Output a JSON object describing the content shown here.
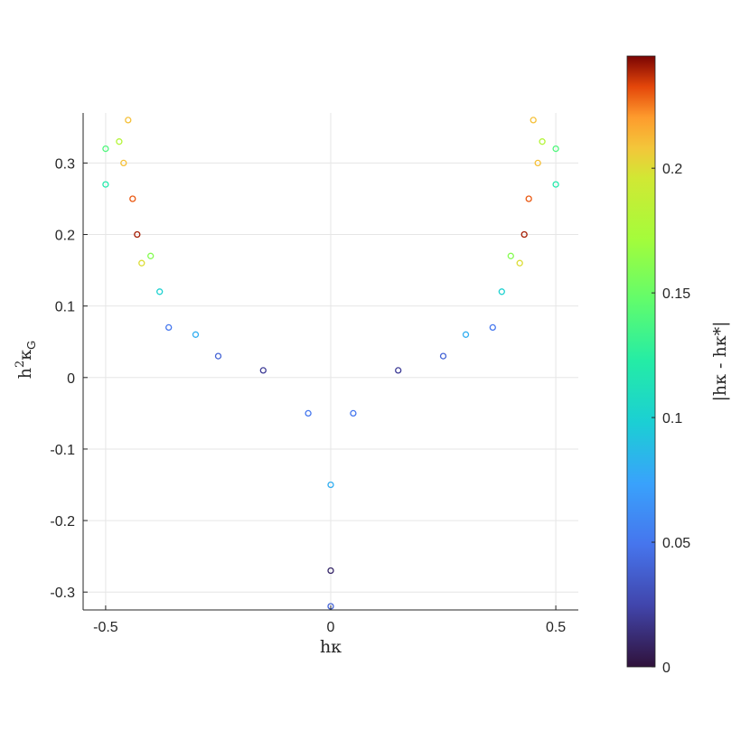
{
  "chart_data": {
    "type": "scatter",
    "title": "",
    "xlabel": "hκ",
    "ylabel_base": "h",
    "ylabel_sup": "2",
    "ylabel_kappa": "κ",
    "ylabel_sub": "G",
    "colorbar_label": "|hκ - hκ*|",
    "xlim": [
      -0.55,
      0.55
    ],
    "ylim": [
      -0.325,
      0.37
    ],
    "xticks": [
      -0.5,
      0,
      0.5
    ],
    "xtick_labels": [
      "-0.5",
      "0",
      "0.5"
    ],
    "yticks": [
      -0.3,
      -0.2,
      -0.1,
      0,
      0.1,
      0.2,
      0.3
    ],
    "ytick_labels": [
      "-0.3",
      "-0.2",
      "-0.1",
      "0",
      "0.1",
      "0.2",
      "0.3"
    ],
    "clim": [
      0,
      0.245
    ],
    "cticks": [
      0,
      0.05,
      0.1,
      0.15,
      0.2
    ],
    "ctick_labels": [
      "0",
      "0.05",
      "0.1",
      "0.15",
      "0.2"
    ],
    "colormap": "turbo",
    "grid": true,
    "series": [
      {
        "values": [
          {
            "x": -0.5,
            "y": 0.32,
            "c": 0.14
          },
          {
            "x": -0.5,
            "y": 0.27,
            "c": 0.12
          },
          {
            "x": -0.47,
            "y": 0.33,
            "c": 0.18
          },
          {
            "x": -0.46,
            "y": 0.3,
            "c": 0.21
          },
          {
            "x": -0.45,
            "y": 0.36,
            "c": 0.21
          },
          {
            "x": -0.44,
            "y": 0.25,
            "c": 0.23
          },
          {
            "x": -0.43,
            "y": 0.2,
            "c": 0.24
          },
          {
            "x": -0.42,
            "y": 0.16,
            "c": 0.2
          },
          {
            "x": -0.4,
            "y": 0.17,
            "c": 0.16
          },
          {
            "x": -0.38,
            "y": 0.12,
            "c": 0.1
          },
          {
            "x": -0.36,
            "y": 0.07,
            "c": 0.05
          },
          {
            "x": -0.3,
            "y": 0.06,
            "c": 0.08
          },
          {
            "x": -0.25,
            "y": 0.03,
            "c": 0.04
          },
          {
            "x": -0.15,
            "y": 0.01,
            "c": 0.02
          },
          {
            "x": -0.05,
            "y": -0.05,
            "c": 0.05
          },
          {
            "x": 0.0,
            "y": -0.15,
            "c": 0.08
          },
          {
            "x": 0.0,
            "y": -0.27,
            "c": 0.01
          },
          {
            "x": 0.0,
            "y": -0.32,
            "c": 0.04
          },
          {
            "x": 0.05,
            "y": -0.05,
            "c": 0.05
          },
          {
            "x": 0.15,
            "y": 0.01,
            "c": 0.02
          },
          {
            "x": 0.25,
            "y": 0.03,
            "c": 0.04
          },
          {
            "x": 0.3,
            "y": 0.06,
            "c": 0.08
          },
          {
            "x": 0.36,
            "y": 0.07,
            "c": 0.05
          },
          {
            "x": 0.38,
            "y": 0.12,
            "c": 0.1
          },
          {
            "x": 0.4,
            "y": 0.17,
            "c": 0.16
          },
          {
            "x": 0.42,
            "y": 0.16,
            "c": 0.2
          },
          {
            "x": 0.43,
            "y": 0.2,
            "c": 0.24
          },
          {
            "x": 0.44,
            "y": 0.25,
            "c": 0.23
          },
          {
            "x": 0.45,
            "y": 0.36,
            "c": 0.21
          },
          {
            "x": 0.46,
            "y": 0.3,
            "c": 0.21
          },
          {
            "x": 0.47,
            "y": 0.33,
            "c": 0.18
          },
          {
            "x": 0.5,
            "y": 0.27,
            "c": 0.12
          },
          {
            "x": 0.5,
            "y": 0.32,
            "c": 0.14
          }
        ]
      }
    ]
  }
}
